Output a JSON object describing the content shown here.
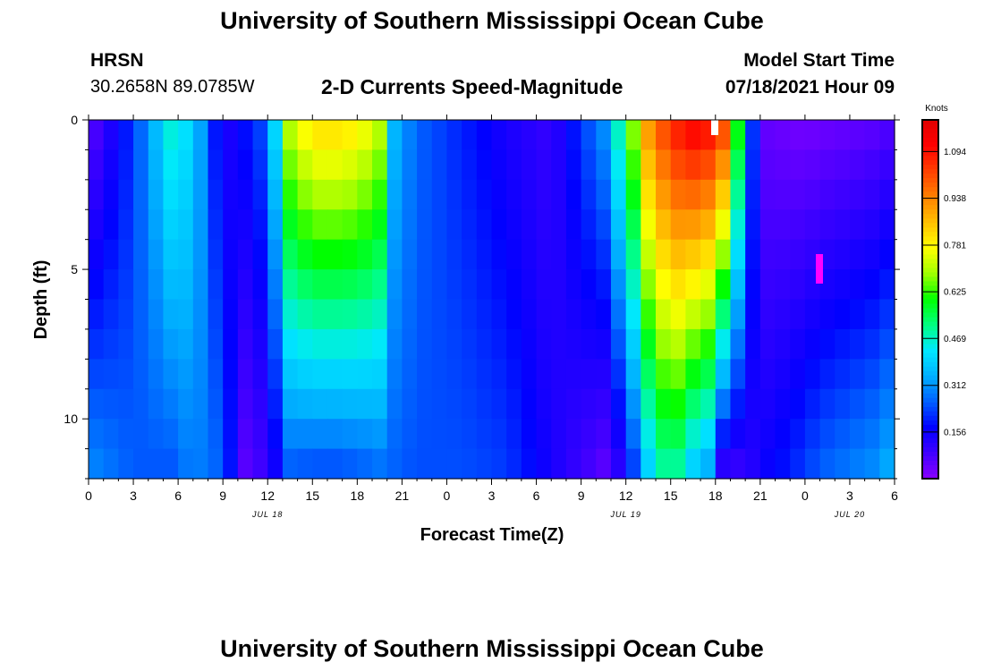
{
  "header": {
    "title_top": "University of Southern Mississippi Ocean Cube",
    "station_code": "HRSN",
    "coordinates": "30.2658N  89.0785W",
    "plot_subtitle": "2-D Currents Speed-Magnitude",
    "model_start_label": "Model Start Time",
    "model_start_value": "07/18/2021 Hour 09",
    "title_bottom": "University of Southern Mississippi Ocean Cube"
  },
  "chart_data": {
    "type": "heatmap",
    "title": "2-D Currents Speed-Magnitude",
    "xlabel": "Forecast Time(Z)",
    "ylabel": "Depth (ft)",
    "x_range_hours": [
      0,
      54
    ],
    "y_range_ft": [
      0,
      12
    ],
    "x_ticks": [
      "0",
      "3",
      "6",
      "9",
      "12",
      "15",
      "18",
      "21",
      "0",
      "3",
      "6",
      "9",
      "12",
      "15",
      "18",
      "21",
      "0",
      "3",
      "6"
    ],
    "date_labels": [
      {
        "text": "JUL 18",
        "hour": 12
      },
      {
        "text": "JUL 19",
        "hour": 36
      },
      {
        "text": "JUL 20",
        "hour": 51
      }
    ],
    "y_ticks": [
      "0",
      "5",
      "10"
    ],
    "colorbar": {
      "label": "Knots",
      "ticks": [
        "1.094",
        "0.938",
        "0.781",
        "0.625",
        "0.469",
        "0.312",
        "0.156"
      ],
      "min": 0,
      "max": 1.2,
      "colors": [
        "#8a00ff",
        "#3f00ff",
        "#0000ff",
        "#0060ff",
        "#00b0ff",
        "#00e8ff",
        "#00ff80",
        "#00ff00",
        "#a0ff00",
        "#ffff00",
        "#ffc000",
        "#ff8000",
        "#ff4000",
        "#ff0000",
        "#e00000"
      ]
    },
    "depth_rows_ft": [
      0.5,
      1.5,
      2.5,
      3.5,
      4.5,
      5.5,
      6.5,
      7.5,
      8.5,
      9.5,
      10.5,
      11.5
    ],
    "time_nodes_hours": [
      0,
      3,
      5.5,
      7,
      9,
      10.5,
      12,
      13.5,
      15,
      16.5,
      18,
      19.5,
      20.5,
      22,
      25,
      28,
      31,
      34.5,
      36,
      37.5,
      39,
      40.5,
      41.5,
      42.5,
      44,
      45,
      46.5,
      48,
      49,
      51,
      52.5,
      54
    ],
    "speed_knots_nodes_surface": [
      0.05,
      0.22,
      0.45,
      0.4,
      0.12,
      0.18,
      0.25,
      0.7,
      0.8,
      0.8,
      0.78,
      0.7,
      0.35,
      0.26,
      0.2,
      0.14,
      0.1,
      0.3,
      0.55,
      0.9,
      1.05,
      1.1,
      1.08,
      1.0,
      0.38,
      0.05,
      0.04,
      0.03,
      0.04,
      0.05,
      0.06,
      0.08
    ],
    "speed_knots_nodes_bottom": [
      0.3,
      0.25,
      0.25,
      0.3,
      0.25,
      0.06,
      0.1,
      0.26,
      0.25,
      0.25,
      0.26,
      0.28,
      0.26,
      0.24,
      0.24,
      0.22,
      0.14,
      0.06,
      0.15,
      0.4,
      0.55,
      0.4,
      0.35,
      0.12,
      0.1,
      0.15,
      0.18,
      0.22,
      0.25,
      0.28,
      0.3,
      0.35
    ]
  }
}
